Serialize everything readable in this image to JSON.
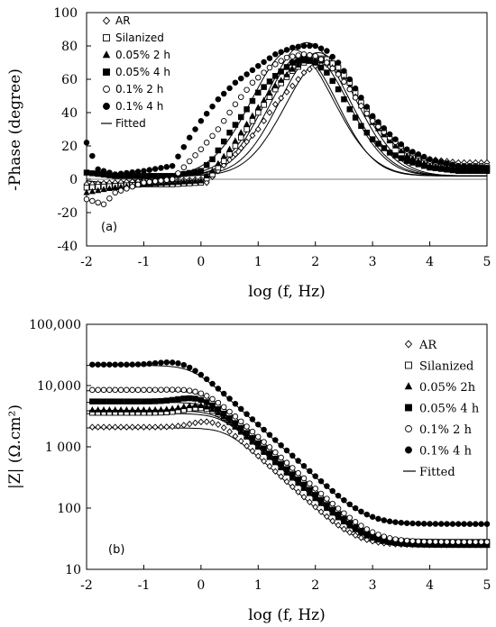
{
  "chart_data": [
    {
      "type": "scatter",
      "panel_label": "(a)",
      "xlabel": "log (f, Hz)",
      "ylabel": "-Phase (degree)",
      "xlim": [
        -2,
        5
      ],
      "ylim": [
        -40,
        100
      ],
      "xticks": [
        "-2",
        "-1",
        "0",
        "1",
        "2",
        "3",
        "4",
        "5"
      ],
      "yticks": [
        "-40",
        "-20",
        "0",
        "20",
        "40",
        "60",
        "80",
        "100"
      ],
      "grid": false,
      "legend_position": "top-left",
      "series": [
        {
          "name": "AR",
          "marker": "diamond-open",
          "peak": 70,
          "center": 2.15,
          "width": 0.95,
          "base": 0,
          "points": [
            [
              -2,
              -3
            ],
            [
              -1.5,
              -2
            ],
            [
              -1,
              -1
            ],
            [
              -0.5,
              -1
            ],
            [
              0,
              0
            ],
            [
              0.1,
              -2
            ],
            [
              0.3,
              5
            ],
            [
              0.6,
              15
            ],
            [
              1,
              30
            ],
            [
              1.3,
              45
            ],
            [
              1.6,
              56
            ],
            [
              1.8,
              64
            ],
            [
              2,
              68
            ],
            [
              2.2,
              69
            ],
            [
              2.4,
              64
            ],
            [
              2.6,
              57
            ],
            [
              2.8,
              45
            ],
            [
              3,
              35
            ],
            [
              3.3,
              25
            ],
            [
              3.6,
              17
            ],
            [
              4,
              12
            ],
            [
              4.5,
              10
            ],
            [
              5,
              10
            ]
          ]
        },
        {
          "name": "Silanized",
          "marker": "square-open",
          "peak": 74,
          "center": 2.05,
          "width": 0.95,
          "base": 0,
          "points": [
            [
              -2,
              -5
            ],
            [
              -1.5,
              -4
            ],
            [
              -1,
              -3
            ],
            [
              -0.5,
              -3
            ],
            [
              0,
              -2
            ],
            [
              0.2,
              3
            ],
            [
              0.5,
              15
            ],
            [
              0.8,
              30
            ],
            [
              1,
              40
            ],
            [
              1.3,
              54
            ],
            [
              1.6,
              65
            ],
            [
              1.8,
              70
            ],
            [
              2,
              73
            ],
            [
              2.2,
              72
            ],
            [
              2.4,
              67
            ],
            [
              2.6,
              58
            ],
            [
              2.8,
              46
            ],
            [
              3,
              36
            ],
            [
              3.3,
              24
            ],
            [
              3.6,
              15
            ],
            [
              4,
              9
            ],
            [
              4.5,
              7
            ],
            [
              5,
              7
            ]
          ]
        },
        {
          "name": "0.05% 2 h",
          "marker": "triangle-filled",
          "peak": 73,
          "center": 1.9,
          "width": 0.95,
          "base": 0,
          "points": [
            [
              -2,
              -8
            ],
            [
              -1.5,
              -5
            ],
            [
              -1,
              -3
            ],
            [
              -0.5,
              -2
            ],
            [
              0,
              -1
            ],
            [
              0.2,
              5
            ],
            [
              0.5,
              18
            ],
            [
              0.8,
              33
            ],
            [
              1,
              43
            ],
            [
              1.3,
              56
            ],
            [
              1.6,
              66
            ],
            [
              1.8,
              71
            ],
            [
              2,
              72
            ],
            [
              2.2,
              70
            ],
            [
              2.4,
              64
            ],
            [
              2.6,
              55
            ],
            [
              2.8,
              44
            ],
            [
              3,
              34
            ],
            [
              3.3,
              23
            ],
            [
              3.6,
              14
            ],
            [
              4,
              8
            ],
            [
              4.5,
              6
            ],
            [
              5,
              6
            ]
          ]
        },
        {
          "name": "0.05% 4 h",
          "marker": "square-filled",
          "peak": 72,
          "center": 1.75,
          "width": 0.9,
          "base": 0,
          "points": [
            [
              -2,
              4
            ],
            [
              -1.5,
              2
            ],
            [
              -1,
              2
            ],
            [
              -0.5,
              2
            ],
            [
              0,
              5
            ],
            [
              0.2,
              12
            ],
            [
              0.5,
              28
            ],
            [
              0.8,
              42
            ],
            [
              1,
              52
            ],
            [
              1.3,
              62
            ],
            [
              1.6,
              70
            ],
            [
              1.8,
              72
            ],
            [
              2,
              70
            ],
            [
              2.2,
              64
            ],
            [
              2.4,
              54
            ],
            [
              2.6,
              42
            ],
            [
              2.8,
              32
            ],
            [
              3,
              24
            ],
            [
              3.3,
              16
            ],
            [
              3.6,
              11
            ],
            [
              4,
              7
            ],
            [
              4.5,
              5
            ],
            [
              5,
              5
            ]
          ]
        },
        {
          "name": "0.1% 2 h",
          "marker": "circle-open",
          "peak": 76,
          "center": 1.6,
          "width": 1.0,
          "base": 0,
          "points": [
            [
              -2,
              -12
            ],
            [
              -1.7,
              -15
            ],
            [
              -1.5,
              -8
            ],
            [
              -1,
              -2
            ],
            [
              -0.5,
              0
            ],
            [
              0,
              18
            ],
            [
              0.3,
              30
            ],
            [
              0.6,
              45
            ],
            [
              0.9,
              58
            ],
            [
              1.2,
              67
            ],
            [
              1.5,
              73
            ],
            [
              1.8,
              75
            ],
            [
              2,
              74
            ],
            [
              2.2,
              70
            ],
            [
              2.4,
              63
            ],
            [
              2.6,
              54
            ],
            [
              2.8,
              44
            ],
            [
              3,
              35
            ],
            [
              3.3,
              25
            ],
            [
              3.6,
              17
            ],
            [
              4,
              11
            ],
            [
              4.5,
              8
            ],
            [
              5,
              8
            ]
          ]
        },
        {
          "name": "0.1% 4 h",
          "marker": "circle-filled",
          "peak": 80,
          "center": 1.85,
          "width": 1.0,
          "base": 0,
          "points": [
            [
              -2,
              22
            ],
            [
              -1.8,
              6
            ],
            [
              -1.5,
              3
            ],
            [
              -1,
              5
            ],
            [
              -0.5,
              8
            ],
            [
              -0.2,
              25
            ],
            [
              0,
              35
            ],
            [
              0.3,
              48
            ],
            [
              0.6,
              58
            ],
            [
              1,
              68
            ],
            [
              1.3,
              75
            ],
            [
              1.6,
              79
            ],
            [
              1.8,
              80
            ],
            [
              2,
              80
            ],
            [
              2.2,
              77
            ],
            [
              2.4,
              70
            ],
            [
              2.6,
              60
            ],
            [
              2.8,
              49
            ],
            [
              3,
              38
            ],
            [
              3.3,
              27
            ],
            [
              3.6,
              18
            ],
            [
              4,
              12
            ],
            [
              4.5,
              8
            ],
            [
              5,
              7
            ]
          ]
        }
      ],
      "fitted_label": "Fitted"
    },
    {
      "type": "scatter",
      "panel_label": "(b)",
      "xlabel": "log (f, Hz)",
      "ylabel": "|Z| (Ω.cm²)",
      "xlim": [
        -2,
        5
      ],
      "ylim": [
        10,
        100000
      ],
      "yscale": "log",
      "xticks": [
        "-2",
        "-1",
        "0",
        "1",
        "2",
        "3",
        "4",
        "5"
      ],
      "yticks": [
        "10",
        "100",
        "1 000",
        "10,000",
        "100,000"
      ],
      "grid": false,
      "legend_position": "right",
      "series": [
        {
          "name": "AR",
          "marker": "diamond-open",
          "plateau": 2100,
          "bump": 2700,
          "corner": 0.45,
          "rs": 25
        },
        {
          "name": "Silanized",
          "marker": "square-open",
          "plateau": 3600,
          "bump": 4500,
          "corner": 0.35,
          "rs": 28
        },
        {
          "name": "0.05% 2h",
          "marker": "triangle-filled",
          "plateau": 4000,
          "bump": 5000,
          "corner": 0.3,
          "rs": 25
        },
        {
          "name": "0.05% 4 h",
          "marker": "square-filled",
          "plateau": 5500,
          "bump": 6500,
          "corner": 0.2,
          "rs": 25
        },
        {
          "name": "0.1% 2 h",
          "marker": "circle-open",
          "plateau": 8500,
          "bump": 8800,
          "corner": 0.1,
          "rs": 28
        },
        {
          "name": "0.1% 4 h",
          "marker": "circle-filled",
          "plateau": 22000,
          "bump": 25000,
          "corner": -0.15,
          "rs": 55
        }
      ],
      "fitted_label": "Fitted"
    }
  ]
}
